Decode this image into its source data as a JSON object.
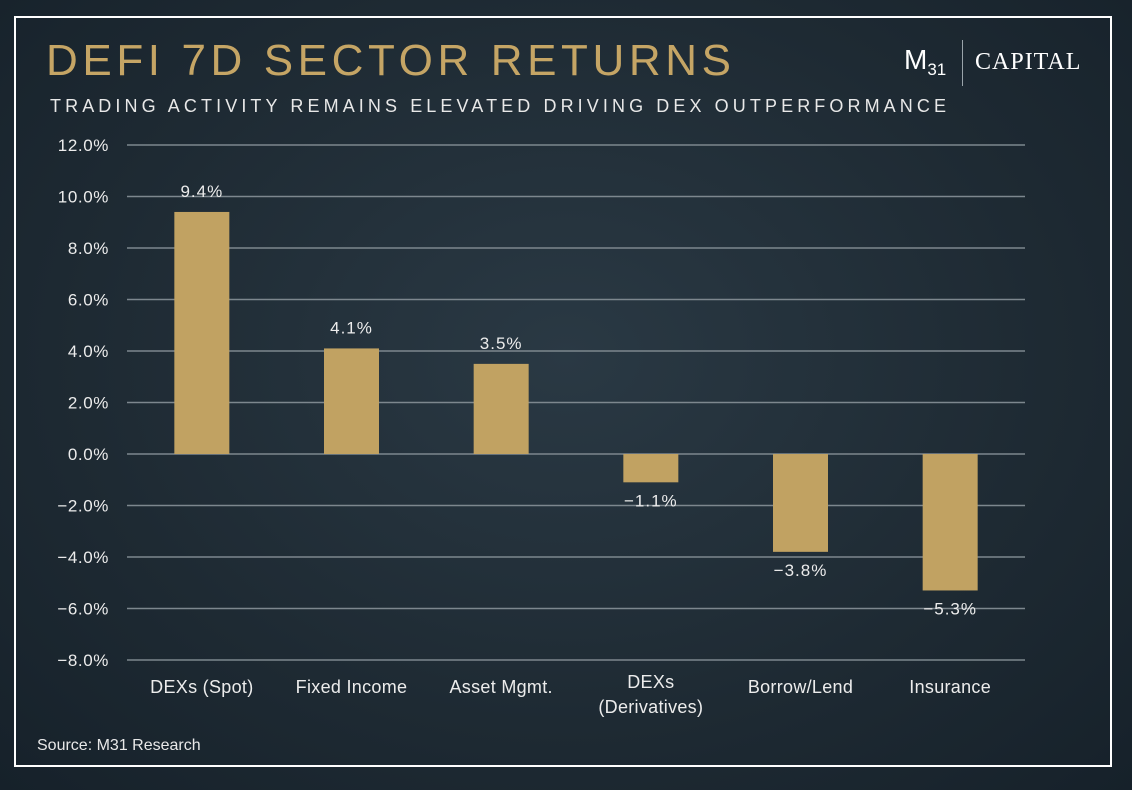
{
  "header": {
    "title": "DEFI 7D SECTOR RETURNS",
    "subtitle": "TRADING ACTIVITY REMAINS ELEVATED DRIVING DEX OUTPERFORMANCE"
  },
  "logo": {
    "m_letter": "M",
    "m_subscript": "31",
    "capital": "CAPITAL"
  },
  "footer": {
    "source": "Source: M31 Research"
  },
  "colors": {
    "bar": "#c1a262",
    "title": "#c5a565",
    "gridline": "#7d878e",
    "background": "#1e2a33"
  },
  "chart_data": {
    "type": "bar",
    "title": "DEFI 7D SECTOR RETURNS",
    "subtitle": "TRADING ACTIVITY REMAINS ELEVATED DRIVING DEX OUTPERFORMANCE",
    "categories": [
      [
        "DEXs (Spot)"
      ],
      [
        "Fixed Income"
      ],
      [
        "Asset Mgmt."
      ],
      [
        "DEXs",
        "(Derivatives)"
      ],
      [
        "Borrow/Lend"
      ],
      [
        "Insurance"
      ]
    ],
    "values": [
      9.4,
      4.1,
      3.5,
      -1.1,
      -3.8,
      -5.3
    ],
    "value_labels": [
      "9.4%",
      "4.1%",
      "3.5%",
      "−1.1%",
      "−3.8%",
      "−5.3%"
    ],
    "ylim": [
      -8,
      12
    ],
    "yticks": [
      12,
      10,
      8,
      6,
      4,
      2,
      0,
      -2,
      -4,
      -6,
      -8
    ],
    "ytick_labels": [
      "12.0%",
      "10.0%",
      "8.0%",
      "6.0%",
      "4.0%",
      "2.0%",
      "0.0%",
      "−2.0%",
      "−4.0%",
      "−6.0%",
      "−8.0%"
    ],
    "xlabel": "",
    "ylabel": "",
    "grid": true,
    "legend": "none"
  }
}
